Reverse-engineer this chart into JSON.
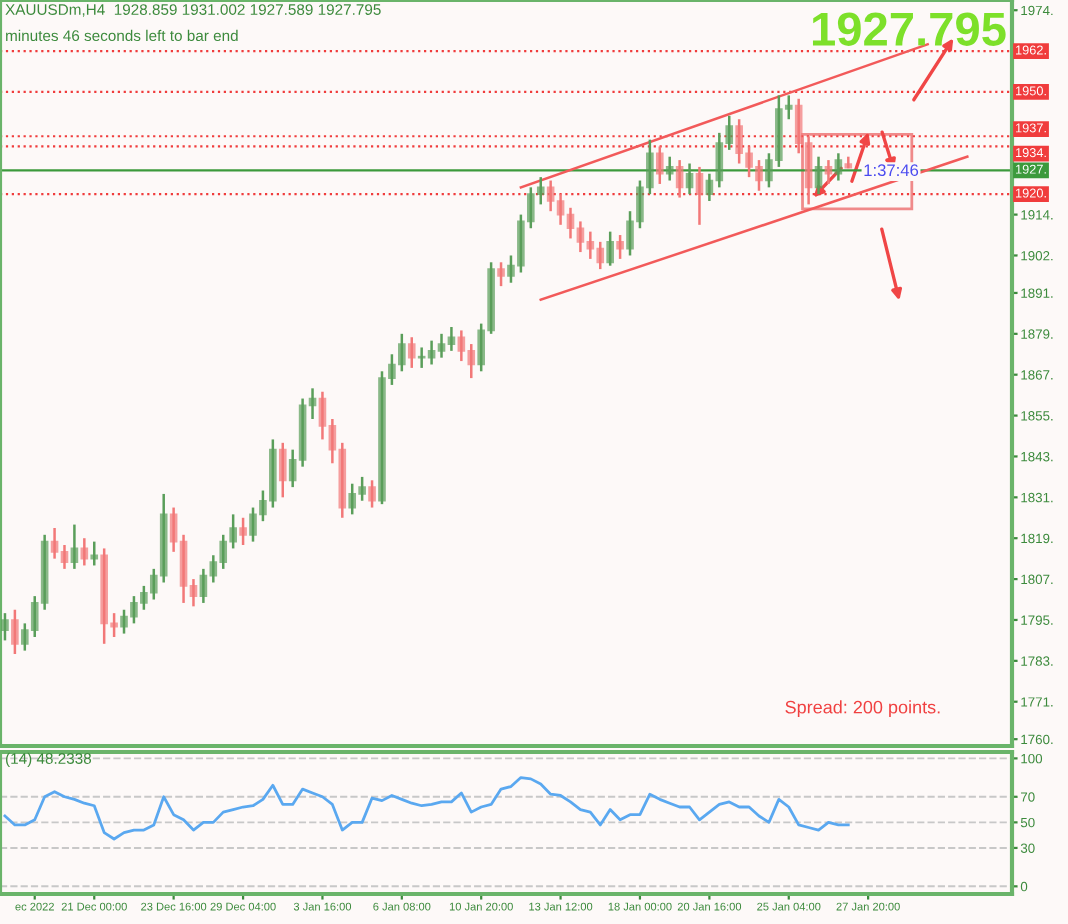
{
  "chart_data": [
    {
      "type": "candlestick",
      "title": "XAUUSDm,H4  1928.859 1931.002 1927.589 1927.795",
      "subtitle": "minutes 46 seconds left to bar end",
      "categories": [
        null,
        null,
        null,
        null,
        null,
        null,
        null,
        null,
        null,
        null,
        null,
        null,
        null,
        null,
        null,
        null,
        null,
        null,
        null,
        null,
        null,
        null,
        null,
        null,
        null,
        null,
        null,
        null,
        null,
        null,
        null,
        null,
        null,
        null,
        null,
        null,
        null,
        null,
        null,
        null,
        null,
        null,
        null,
        null,
        null,
        null,
        null,
        null,
        null,
        null,
        null,
        null,
        null,
        null,
        null,
        null,
        null,
        null,
        null,
        null,
        null,
        null,
        null,
        null,
        null,
        null,
        null,
        null,
        null,
        null,
        null,
        null,
        null,
        null,
        null,
        null,
        null,
        null,
        null,
        null,
        null,
        null,
        null,
        null,
        null,
        null,
        null,
        null,
        null,
        null,
        null,
        null,
        null,
        null,
        null,
        null,
        null,
        null,
        null,
        null,
        null,
        null
      ],
      "ohlc": [
        [
          1792,
          1797,
          1789,
          1795
        ],
        [
          1795,
          1798,
          1785,
          1788
        ],
        [
          1788,
          1794,
          1786,
          1792
        ],
        [
          1792,
          1802,
          1790,
          1800
        ],
        [
          1800,
          1820,
          1798,
          1818
        ],
        [
          1818,
          1822,
          1813,
          1815
        ],
        [
          1815,
          1817,
          1810,
          1812
        ],
        [
          1812,
          1823,
          1810,
          1816
        ],
        [
          1816,
          1819,
          1811,
          1813
        ],
        [
          1813,
          1818,
          1811,
          1814
        ],
        [
          1814,
          1816,
          1788,
          1794
        ],
        [
          1794,
          1797,
          1790,
          1793
        ],
        [
          1793,
          1798,
          1791,
          1796
        ],
        [
          1796,
          1802,
          1794,
          1800
        ],
        [
          1800,
          1805,
          1798,
          1803
        ],
        [
          1803,
          1810,
          1801,
          1808
        ],
        [
          1808,
          1832,
          1806,
          1826
        ],
        [
          1826,
          1828,
          1815,
          1818
        ],
        [
          1818,
          1820,
          1800,
          1805
        ],
        [
          1805,
          1807,
          1799,
          1802
        ],
        [
          1802,
          1810,
          1800,
          1808
        ],
        [
          1808,
          1814,
          1806,
          1812
        ],
        [
          1812,
          1820,
          1810,
          1818
        ],
        [
          1818,
          1826,
          1816,
          1822
        ],
        [
          1822,
          1825,
          1817,
          1820
        ],
        [
          1820,
          1828,
          1818,
          1826
        ],
        [
          1826,
          1833,
          1824,
          1830
        ],
        [
          1830,
          1848,
          1828,
          1845
        ],
        [
          1845,
          1847,
          1831,
          1836
        ],
        [
          1836,
          1845,
          1834,
          1842
        ],
        [
          1842,
          1860,
          1840,
          1858
        ],
        [
          1858,
          1863,
          1854,
          1860
        ],
        [
          1860,
          1862,
          1848,
          1852
        ],
        [
          1852,
          1854,
          1841,
          1845
        ],
        [
          1845,
          1847,
          1825,
          1828
        ],
        [
          1828,
          1835,
          1826,
          1832
        ],
        [
          1832,
          1837,
          1830,
          1834
        ],
        [
          1834,
          1836,
          1828,
          1830
        ],
        [
          1830,
          1868,
          1829,
          1866
        ],
        [
          1866,
          1873,
          1864,
          1870
        ],
        [
          1870,
          1879,
          1868,
          1876
        ],
        [
          1876,
          1878,
          1869,
          1872
        ],
        [
          1872,
          1875,
          1869,
          1872
        ],
        [
          1872,
          1877,
          1870,
          1874
        ],
        [
          1874,
          1879,
          1872,
          1876
        ],
        [
          1876,
          1881,
          1874,
          1878
        ],
        [
          1878,
          1880,
          1871,
          1874
        ],
        [
          1874,
          1876,
          1866,
          1870
        ],
        [
          1870,
          1882,
          1868,
          1880
        ],
        [
          1880,
          1900,
          1879,
          1898
        ],
        [
          1898,
          1900,
          1893,
          1896
        ],
        [
          1896,
          1902,
          1894,
          1899
        ],
        [
          1899,
          1914,
          1897,
          1912
        ],
        [
          1912,
          1922,
          1910,
          1920
        ],
        [
          1920,
          1925,
          1917,
          1922
        ],
        [
          1922,
          1924,
          1915,
          1918
        ],
        [
          1918,
          1920,
          1911,
          1914
        ],
        [
          1914,
          1916,
          1907,
          1910
        ],
        [
          1910,
          1912,
          1903,
          1906
        ],
        [
          1906,
          1909,
          1901,
          1904
        ],
        [
          1904,
          1906,
          1898,
          1900
        ],
        [
          1900,
          1909,
          1899,
          1906
        ],
        [
          1906,
          1908,
          1901,
          1904
        ],
        [
          1904,
          1915,
          1902,
          1912
        ],
        [
          1912,
          1924,
          1910,
          1922
        ],
        [
          1922,
          1936,
          1920,
          1932
        ],
        [
          1932,
          1934,
          1923,
          1926
        ],
        [
          1926,
          1931,
          1924,
          1928
        ],
        [
          1928,
          1930,
          1919,
          1922
        ],
        [
          1922,
          1929,
          1920,
          1926
        ],
        [
          1926,
          1928,
          1911,
          1920
        ],
        [
          1920,
          1926,
          1918,
          1924
        ],
        [
          1924,
          1938,
          1922,
          1935
        ],
        [
          1935,
          1943,
          1933,
          1940
        ],
        [
          1940,
          1942,
          1929,
          1932
        ],
        [
          1932,
          1934,
          1925,
          1928
        ],
        [
          1928,
          1930,
          1921,
          1924
        ],
        [
          1924,
          1932,
          1922,
          1930
        ],
        [
          1930,
          1949,
          1928,
          1945
        ],
        [
          1945,
          1949,
          1942,
          1946
        ],
        [
          1946,
          1948,
          1932,
          1935
        ],
        [
          1935,
          1937,
          1917,
          1922
        ],
        [
          1922,
          1931,
          1920,
          1928
        ],
        [
          1928,
          1930,
          1923,
          1926
        ],
        [
          1926,
          1932,
          1924,
          1930
        ],
        [
          1928.859,
          1931.002,
          1927.589,
          1927.795
        ],
        null,
        null,
        null,
        null,
        null,
        null,
        null,
        null,
        null,
        null,
        null,
        null,
        null,
        null,
        null,
        null
      ],
      "colors": [
        "#5a9e5a",
        "#f27878",
        "#5a9e5a",
        "#5a9e5a",
        "#5a9e5a",
        "#f27878",
        "#f27878",
        "#5a9e5a",
        "#f27878",
        "#5a9e5a",
        "#f27878",
        "#f27878",
        "#5a9e5a",
        "#5a9e5a",
        "#5a9e5a",
        "#5a9e5a",
        "#5a9e5a",
        "#f27878",
        "#f27878",
        "#f27878",
        "#5a9e5a",
        "#5a9e5a",
        "#5a9e5a",
        "#5a9e5a",
        "#f27878",
        "#5a9e5a",
        "#5a9e5a",
        "#5a9e5a",
        "#f27878",
        "#5a9e5a",
        "#5a9e5a",
        "#5a9e5a",
        "#f27878",
        "#f27878",
        "#f27878",
        "#5a9e5a",
        "#5a9e5a",
        "#f27878",
        "#5a9e5a",
        "#5a9e5a",
        "#5a9e5a",
        "#f27878",
        "#5a9e5a",
        "#5a9e5a",
        "#5a9e5a",
        "#5a9e5a",
        "#f27878",
        "#f27878",
        "#5a9e5a",
        "#5a9e5a",
        "#f27878",
        "#5a9e5a",
        "#5a9e5a",
        "#5a9e5a",
        "#5a9e5a",
        "#f27878",
        "#f27878",
        "#f27878",
        "#f27878",
        "#f27878",
        "#f27878",
        "#5a9e5a",
        "#f27878",
        "#5a9e5a",
        "#5a9e5a",
        "#5a9e5a",
        "#f27878",
        "#5a9e5a",
        "#f27878",
        "#5a9e5a",
        "#f27878",
        "#5a9e5a",
        "#5a9e5a",
        "#5a9e5a",
        "#f27878",
        "#f27878",
        "#f27878",
        "#5a9e5a",
        "#5a9e5a",
        "#5a9e5a",
        "#f27878",
        "#f27878",
        "#5a9e5a",
        "#f27878",
        "#5a9e5a",
        "#f27878",
        null,
        null,
        null,
        null,
        null,
        null,
        null,
        null,
        null,
        null,
        null,
        null,
        null,
        null,
        null,
        null
      ],
      "series": [
        {
          "type": "line",
          "color": "#f25a5a",
          "values": [
            null,
            null,
            null,
            null,
            null,
            null,
            null,
            null,
            null,
            null,
            null,
            null,
            null,
            null,
            null,
            null,
            null,
            null,
            null,
            null,
            null,
            null,
            null,
            null,
            null,
            null,
            null,
            null,
            null,
            null,
            null,
            null,
            null,
            null,
            null,
            null,
            null,
            null,
            null,
            null,
            null,
            null,
            null,
            null,
            null,
            null,
            null,
            null,
            null,
            null,
            null,
            null,
            1922,
            null,
            null,
            null,
            null,
            null,
            null,
            null,
            null,
            null,
            null,
            null,
            null,
            null,
            null,
            null,
            null,
            null,
            null,
            null,
            null,
            null,
            null,
            null,
            null,
            null,
            null,
            null,
            null,
            null,
            null,
            null,
            null,
            null,
            null,
            null,
            null,
            null,
            null,
            null,
            null,
            1964,
            null,
            null,
            null,
            null,
            null,
            null,
            null,
            null
          ]
        },
        {
          "type": "line",
          "color": "#f25a5a",
          "values": [
            null,
            null,
            null,
            null,
            null,
            null,
            null,
            null,
            null,
            null,
            null,
            null,
            null,
            null,
            null,
            null,
            null,
            null,
            null,
            null,
            null,
            null,
            null,
            null,
            null,
            null,
            null,
            null,
            null,
            null,
            null,
            null,
            null,
            null,
            null,
            null,
            null,
            null,
            null,
            null,
            null,
            null,
            null,
            null,
            null,
            null,
            null,
            null,
            null,
            null,
            null,
            null,
            null,
            null,
            1889,
            null,
            null,
            null,
            null,
            null,
            null,
            null,
            null,
            null,
            null,
            null,
            null,
            null,
            null,
            null,
            null,
            null,
            null,
            null,
            null,
            null,
            null,
            null,
            null,
            null,
            null,
            null,
            null,
            null,
            null,
            null,
            null,
            null,
            null,
            null,
            null,
            null,
            null,
            null,
            null,
            null,
            null,
            1931,
            null,
            null,
            null,
            null
          ]
        }
      ],
      "ylim": [
        1758,
        1977
      ],
      "yticks": [
        {
          "value": 1760,
          "label": "1760."
        },
        {
          "value": 1771,
          "label": "1771."
        },
        {
          "value": 1783,
          "label": "1783."
        },
        {
          "value": 1795,
          "label": "1795."
        },
        {
          "value": 1807,
          "label": "1807."
        },
        {
          "value": 1819,
          "label": "1819."
        },
        {
          "value": 1831,
          "label": "1831."
        },
        {
          "value": 1843,
          "label": "1843."
        },
        {
          "value": 1855,
          "label": "1855."
        },
        {
          "value": 1867,
          "label": "1867."
        },
        {
          "value": 1879,
          "label": "1879."
        },
        {
          "value": 1891,
          "label": "1891."
        },
        {
          "value": 1902,
          "label": "1902."
        },
        {
          "value": 1914,
          "label": "1914."
        },
        {
          "value": 1974,
          "label": "1974."
        }
      ],
      "ref_lines": [
        {
          "axis": "y",
          "value": 1962,
          "label": "1962.",
          "color": "#f03c3c",
          "line_style": "dotted"
        },
        {
          "axis": "y",
          "value": 1950,
          "label": "1950.",
          "color": "#f03c3c",
          "line_style": "dotted"
        },
        {
          "axis": "y",
          "value": 1937,
          "label": "1937.",
          "color": "#f03c3c",
          "line_style": "dotted"
        },
        {
          "axis": "y",
          "value": 1934,
          "label": "1934.",
          "color": "#f03c3c",
          "line_style": "dotted"
        },
        {
          "axis": "y",
          "value": 1927,
          "label": "1927.",
          "color": "#3c9a3c",
          "line_style": "solid"
        },
        {
          "axis": "y",
          "value": 1920,
          "label": "1920.",
          "color": "#f03c3c",
          "line_style": "dotted"
        }
      ],
      "annotations": [
        "1927.795",
        "1:37:46",
        "Spread: 200 points."
      ],
      "tick_labels": "y",
      "grid": false,
      "legend": false
    },
    {
      "type": "line",
      "title": "(14) 48.2338",
      "categories": [
        null,
        null,
        null,
        "ec 2022",
        null,
        null,
        null,
        null,
        null,
        "21 Dec 00:00",
        null,
        null,
        null,
        null,
        null,
        null,
        null,
        "23 Dec 16:00",
        null,
        null,
        null,
        null,
        null,
        null,
        "29 Dec 04:00",
        null,
        null,
        null,
        null,
        null,
        null,
        null,
        "3 Jan 16:00",
        null,
        null,
        null,
        null,
        null,
        null,
        null,
        "6 Jan 08:00",
        null,
        null,
        null,
        null,
        null,
        null,
        null,
        "10 Jan 20:00",
        null,
        null,
        null,
        null,
        null,
        null,
        null,
        "13 Jan 12:00",
        null,
        null,
        null,
        null,
        null,
        null,
        null,
        "18 Jan 00:00",
        null,
        null,
        null,
        null,
        null,
        null,
        "20 Jan 16:00",
        null,
        null,
        null,
        null,
        null,
        null,
        null,
        "25 Jan 04:00",
        null,
        null,
        null,
        null,
        null,
        null,
        null,
        "27 Jan 20:00",
        null,
        null,
        null,
        null,
        null,
        null,
        null,
        null,
        null,
        null,
        null,
        null,
        null,
        null
      ],
      "series": [
        {
          "color": "#5aa8f0",
          "values": [
            55,
            48,
            48,
            52,
            70,
            74,
            70,
            68,
            65,
            63,
            42,
            37,
            42,
            44,
            44,
            48,
            70,
            56,
            52,
            44,
            50,
            50,
            58,
            60,
            62,
            63,
            68,
            79,
            64,
            64,
            76,
            73,
            70,
            64,
            44,
            50,
            50,
            69,
            67,
            71,
            68,
            65,
            63,
            64,
            66,
            66,
            73,
            58,
            62,
            64,
            76,
            78,
            85,
            84,
            80,
            72,
            71,
            66,
            60,
            58,
            48,
            60,
            52,
            56,
            56,
            72,
            68,
            65,
            62,
            62,
            52,
            58,
            64,
            66,
            62,
            62,
            55,
            50,
            68,
            62,
            48,
            46,
            44,
            50,
            48,
            48,
            null,
            null,
            null,
            null,
            null,
            null,
            null,
            null,
            null,
            null,
            null,
            null,
            null,
            null,
            null,
            null
          ]
        }
      ],
      "ylim": [
        -6,
        105
      ],
      "yticks": [
        0,
        30,
        50,
        70,
        100
      ],
      "grid": "y",
      "legend": false
    }
  ]
}
